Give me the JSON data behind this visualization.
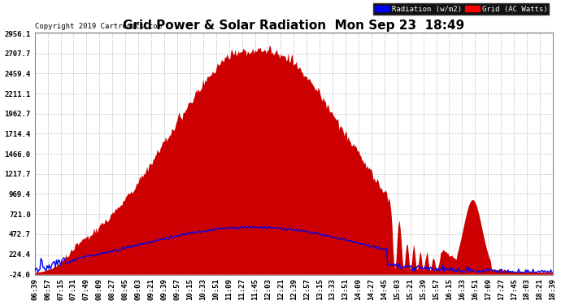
{
  "title": "Grid Power & Solar Radiation  Mon Sep 23  18:49",
  "copyright": "Copyright 2019 Cartronics.com",
  "legend_labels": [
    "Radiation (w/m2)",
    "Grid (AC Watts)"
  ],
  "yticks": [
    -24.0,
    224.4,
    472.7,
    721.0,
    969.4,
    1217.7,
    1466.0,
    1714.4,
    1962.7,
    2211.1,
    2459.4,
    2707.7,
    2956.1
  ],
  "ymin": -24.0,
  "ymax": 2956.1,
  "bg_color": "#ffffff",
  "grid_color": "#bbbbbb",
  "fill_color": "#cc0000",
  "line_color": "#0000ee",
  "title_fontsize": 11,
  "tick_fontsize": 6.5,
  "xtick_labels": [
    "06:39",
    "06:57",
    "07:15",
    "07:31",
    "07:49",
    "08:09",
    "08:27",
    "08:45",
    "09:03",
    "09:21",
    "09:39",
    "09:57",
    "10:15",
    "10:33",
    "10:51",
    "11:09",
    "11:27",
    "11:45",
    "12:03",
    "12:21",
    "12:39",
    "12:57",
    "13:15",
    "13:33",
    "13:51",
    "14:09",
    "14:27",
    "14:45",
    "15:03",
    "15:21",
    "15:39",
    "15:57",
    "16:15",
    "16:33",
    "16:51",
    "17:09",
    "17:27",
    "17:45",
    "18:03",
    "18:21",
    "18:39"
  ]
}
